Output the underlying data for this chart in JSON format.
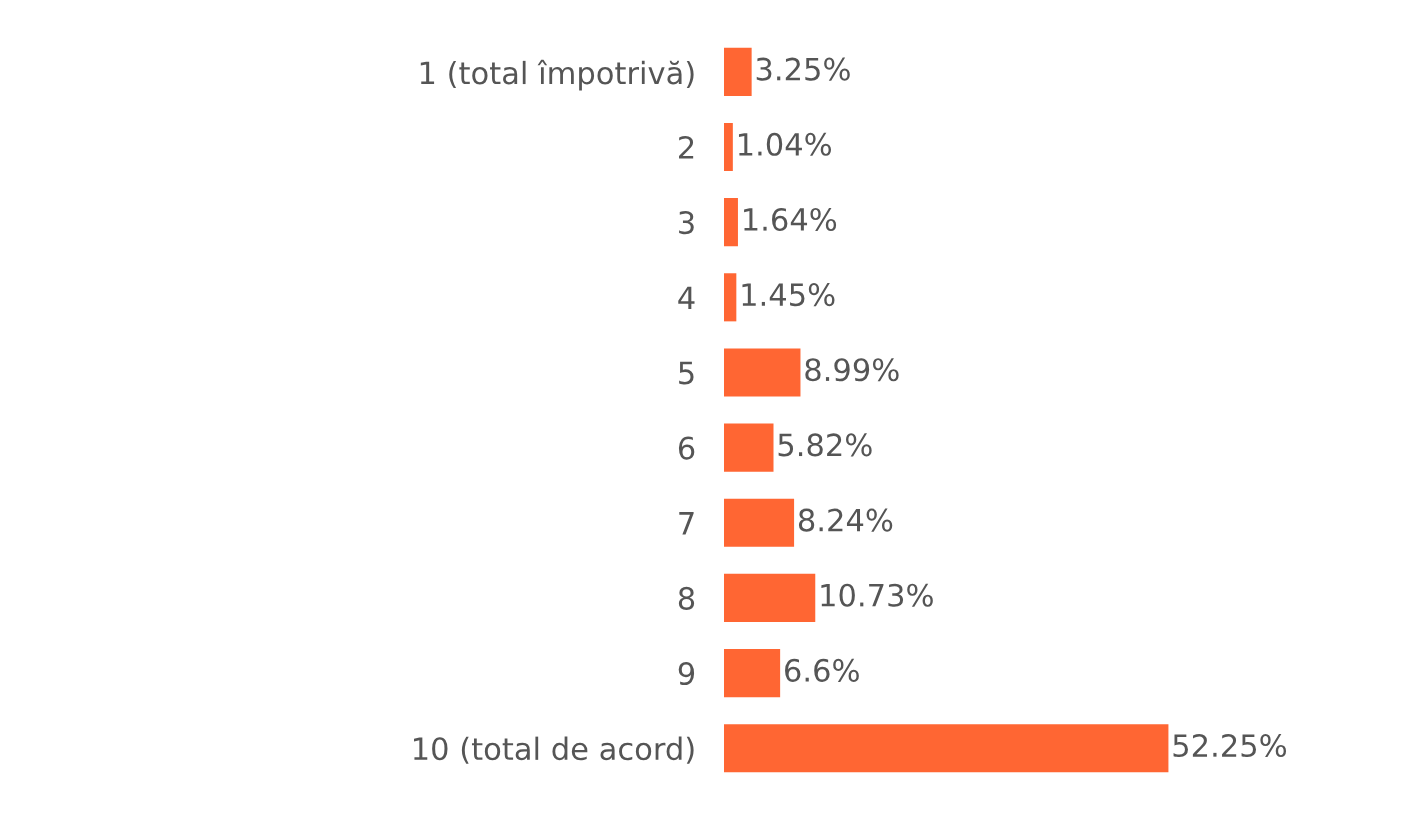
{
  "chart_data": {
    "type": "bar",
    "orientation": "horizontal",
    "categories": [
      "1 (total împotrivă)",
      "2",
      "3",
      "4",
      "5",
      "6",
      "7",
      "8",
      "9",
      "10 (total de acord)"
    ],
    "values": [
      3.25,
      1.04,
      1.64,
      1.45,
      8.99,
      5.82,
      8.24,
      10.73,
      6.6,
      52.25
    ],
    "value_labels": [
      "3.25%",
      "1.04%",
      "1.64%",
      "1.45%",
      "8.99%",
      "5.82%",
      "8.24%",
      "10.73%",
      "6.6%",
      "52.25%"
    ],
    "color": "#ff6633",
    "grid": false,
    "legend": false
  }
}
